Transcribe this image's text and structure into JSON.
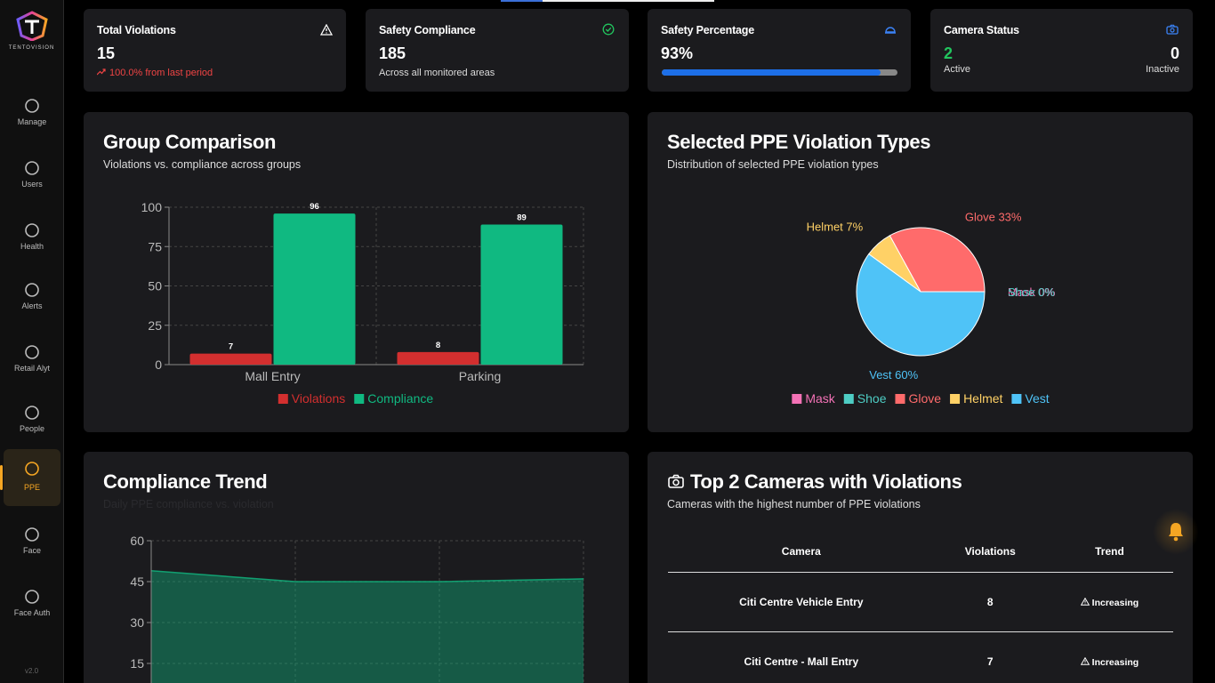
{
  "sidebar": {
    "logo": "TENTOVISION",
    "items": [
      "Manage",
      "Users",
      "Health",
      "Alerts",
      "Retail Alyt",
      "People",
      "PPE",
      "Face",
      "Face Auth"
    ],
    "active": 6,
    "version": "v2.0"
  },
  "stats": {
    "total_violations": {
      "label": "Total Violations",
      "value": 15,
      "change": "100.0% from last period"
    },
    "safety_compliance": {
      "label": "Safety Compliance",
      "value": 185,
      "note": "Across all monitored areas"
    },
    "safety_percentage": {
      "label": "Safety Percentage",
      "value": 93,
      "value_label": "93%"
    },
    "camera_status": {
      "label": "Camera Status",
      "active": 2,
      "active_label": "Active",
      "inactive": 0,
      "inactive_label": "Inactive"
    }
  },
  "chart_data": [
    {
      "type": "bar",
      "title": "Group Comparison",
      "subtitle": "Violations vs. compliance across groups",
      "categories": [
        "Mall Entry",
        "Parking"
      ],
      "series": [
        {
          "name": "Violations",
          "color": "#d32f2f",
          "values": [
            7,
            8
          ]
        },
        {
          "name": "Compliance",
          "color": "#10b981",
          "values": [
            96,
            89
          ]
        }
      ],
      "ylim": [
        0,
        100
      ],
      "yticks": [
        0,
        25,
        50,
        75,
        100
      ],
      "grid": true
    },
    {
      "type": "pie",
      "title": "Selected PPE Violation Types",
      "subtitle": "Distribution of selected PPE violation types",
      "categories": [
        "Mask",
        "Shoe",
        "Glove",
        "Helmet",
        "Vest"
      ],
      "values": [
        0,
        0,
        33,
        7,
        60
      ],
      "value_labels": [
        "Mask 0%",
        "Shoe 0%",
        "Glove 33%",
        "Helmet 7%",
        "Vest 60%"
      ],
      "colors": [
        "#f472b6",
        "#4ecdc4",
        "#ff6b6b",
        "#ffd166",
        "#4fc3f7"
      ]
    },
    {
      "type": "area",
      "title": "Compliance Trend",
      "subtitle": "Daily PPE compliance vs. violation",
      "categories": [
        null,
        null,
        null,
        null
      ],
      "values": [
        49,
        45,
        45,
        46
      ],
      "color": "#10b981",
      "ylim": [
        0,
        60
      ],
      "yticks": [
        15,
        30,
        45,
        60
      ],
      "grid": true
    }
  ],
  "table": {
    "title": "Top 2 Cameras with Violations",
    "subtitle": "Cameras with the highest number of PPE violations",
    "columns": [
      "Camera",
      "Violations",
      "Trend"
    ],
    "rows": [
      [
        "Citi Centre Vehicle Entry",
        8,
        "Increasing"
      ],
      [
        "Citi Centre - Mall Entry",
        7,
        "Increasing"
      ]
    ]
  }
}
